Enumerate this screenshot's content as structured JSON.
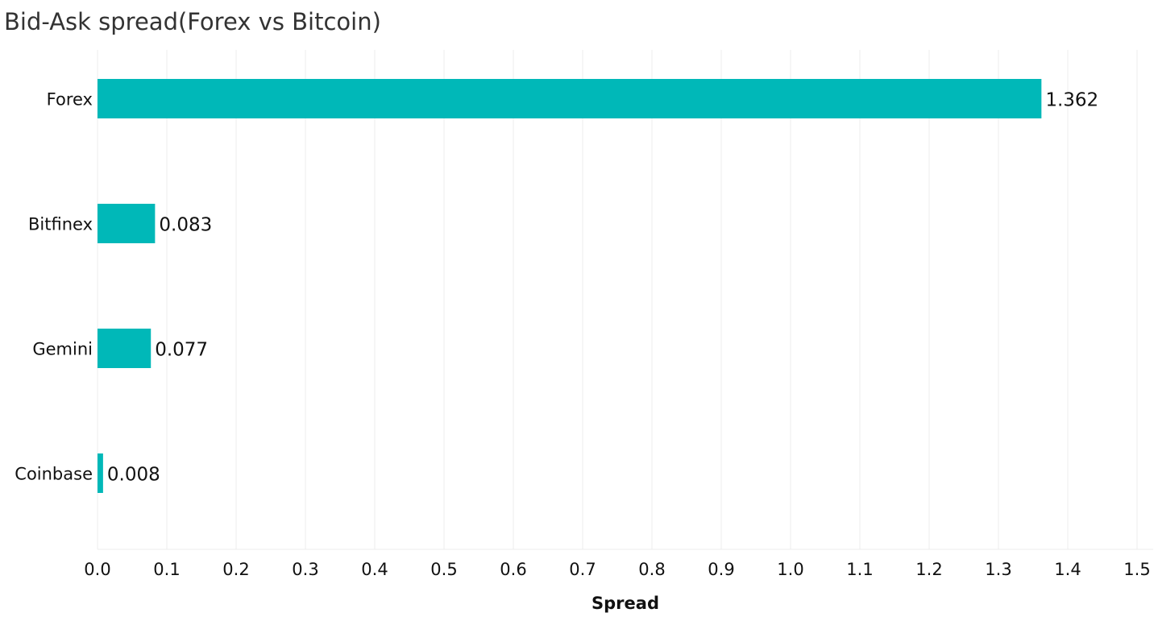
{
  "chart_data": {
    "type": "bar",
    "orientation": "horizontal",
    "title": "Bid-Ask spread(Forex vs Bitcoin)",
    "xlabel": "Spread",
    "ylabel": "",
    "categories": [
      "Forex",
      "Bitfinex",
      "Gemini",
      "Coinbase"
    ],
    "values": [
      1.362,
      0.083,
      0.077,
      0.008
    ],
    "value_labels": [
      "1.362",
      "0.083",
      "0.077",
      "0.008"
    ],
    "xlim": [
      0,
      1.5
    ],
    "x_ticks": [
      "0.0",
      "0.1",
      "0.2",
      "0.3",
      "0.4",
      "0.5",
      "0.6",
      "0.7",
      "0.8",
      "0.9",
      "1.0",
      "1.1",
      "1.2",
      "1.3",
      "1.4",
      "1.5"
    ],
    "grid": true,
    "legend": "none",
    "bar_color": "#00b8b8"
  }
}
